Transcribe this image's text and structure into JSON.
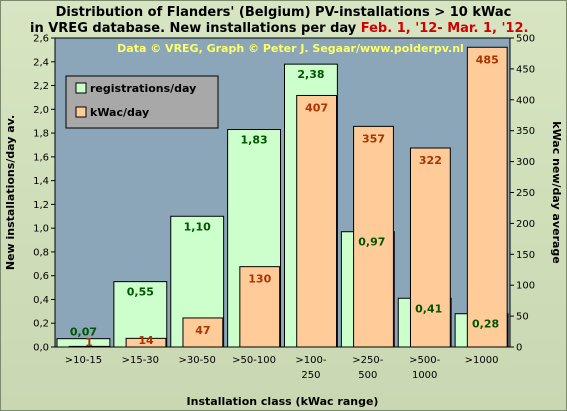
{
  "title_line1": "Distribution of Flanders' (Belgium) PV-installations > 10 kWac",
  "title_line2_prefix": "in VREG database. New installations per day ",
  "title_line2_date": "Feb. 1, '12- Mar. 1, '12.",
  "credit": "Data © VREG, Graph © Peter J. Segaar/www.polderpv.nl",
  "colors": {
    "registrations": "#ccffcc",
    "kwac": "#ffcc99",
    "kwac_label": "#aa3300",
    "reg_label": "#005500",
    "credit": "#ffff66",
    "plot_bg": "#8aa6b8",
    "legend_bg": "#a8a8a8"
  },
  "chart_data": {
    "type": "bar",
    "categories": [
      ">10-15",
      ">15-30",
      ">30-50",
      ">50-100",
      ">100-\n250",
      ">250-\n500",
      ">500-\n1000",
      ">1000"
    ],
    "xlabel": "Installation class (kWac range)",
    "ylabel": "New installations/day av.",
    "y2label": "kWac new/day average",
    "ylim": [
      0,
      2.6
    ],
    "y2lim": [
      0,
      500
    ],
    "yticks": [
      "0,0",
      "0,2",
      "0,4",
      "0,6",
      "0,8",
      "1,0",
      "1,2",
      "1,4",
      "1,6",
      "1,8",
      "2,0",
      "2,2",
      "2,4",
      "2,6"
    ],
    "y2ticks": [
      "0",
      "50",
      "100",
      "150",
      "200",
      "250",
      "300",
      "350",
      "400",
      "450",
      "500"
    ],
    "legend_position": "top-left",
    "series": [
      {
        "name": "registrations/day",
        "axis": "left",
        "values": [
          0.07,
          0.55,
          1.1,
          1.83,
          2.38,
          0.97,
          0.41,
          0.28
        ],
        "labels": [
          "0,07",
          "0,55",
          "1,10",
          "1,83",
          "2,38",
          "0,97",
          "0,41",
          "0,28"
        ]
      },
      {
        "name": "kWac/day",
        "axis": "right",
        "values": [
          1,
          14,
          47,
          130,
          407,
          357,
          322,
          485
        ],
        "labels": [
          "1",
          "14",
          "47",
          "130",
          "407",
          "357",
          "322",
          "485"
        ]
      }
    ]
  }
}
